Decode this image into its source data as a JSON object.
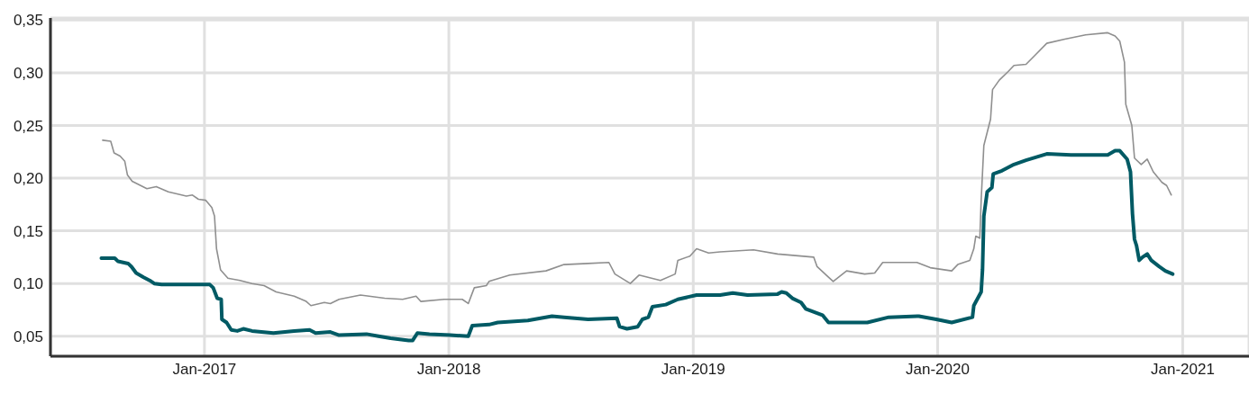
{
  "chart_data": {
    "type": "line",
    "xlim": [
      "2016-05-16",
      "2021-04-10"
    ],
    "ylim": [
      0.031,
      0.352
    ],
    "xticks": [
      {
        "value": "2017-01",
        "label": "Jan-2017"
      },
      {
        "value": "2018-01",
        "label": "Jan-2018"
      },
      {
        "value": "2019-01",
        "label": "Jan-2019"
      },
      {
        "value": "2020-01",
        "label": "Jan-2020"
      },
      {
        "value": "2021-01",
        "label": "Jan-2021"
      }
    ],
    "yticks": [
      {
        "value": 0.05,
        "label": "0,05"
      },
      {
        "value": 0.1,
        "label": "0,10"
      },
      {
        "value": 0.15,
        "label": "0,15"
      },
      {
        "value": 0.2,
        "label": "0,20"
      },
      {
        "value": 0.25,
        "label": "0,25"
      },
      {
        "value": 0.3,
        "label": "0,30"
      },
      {
        "value": 0.35,
        "label": "0,35"
      }
    ],
    "grid": true,
    "marker": "none",
    "series": [
      {
        "color": "#005a64",
        "x": [
          "2016-07-31",
          "2016-08-20",
          "2016-08-25",
          "2016-09-09",
          "2016-09-14",
          "2016-09-21",
          "2016-10-02",
          "2016-10-11",
          "2016-10-18",
          "2016-10-29",
          "2016-11-26",
          "2016-12-22",
          "2017-01-09",
          "2017-01-14",
          "2017-01-20",
          "2017-01-26",
          "2017-01-27",
          "2017-02-03",
          "2017-02-10",
          "2017-02-19",
          "2017-02-28",
          "2017-03-13",
          "2017-04-14",
          "2017-05-15",
          "2017-06-07",
          "2017-06-16",
          "2017-07-08",
          "2017-07-21",
          "2017-08-31",
          "2017-09-18",
          "2017-10-06",
          "2017-11-02",
          "2017-11-08",
          "2017-11-15",
          "2017-12-03",
          "2018-01-03",
          "2018-01-30",
          "2018-02-05",
          "2018-03-02",
          "2018-03-15",
          "2018-04-29",
          "2018-06-04",
          "2018-06-22",
          "2018-07-28",
          "2018-09-09",
          "2018-09-13",
          "2018-09-24",
          "2018-10-10",
          "2018-10-17",
          "2018-10-26",
          "2018-11-01",
          "2018-11-21",
          "2018-12-09",
          "2019-01-06",
          "2019-02-10",
          "2019-03-01",
          "2019-03-23",
          "2019-05-07",
          "2019-05-13",
          "2019-05-20",
          "2019-05-29",
          "2019-06-11",
          "2019-06-18",
          "2019-07-13",
          "2019-07-22",
          "2019-08-13",
          "2019-09-18",
          "2019-10-20",
          "2019-12-04",
          "2019-12-30",
          "2020-01-22",
          "2020-02-22",
          "2020-02-24",
          "2020-03-06",
          "2020-03-08",
          "2020-03-10",
          "2020-03-15",
          "2020-03-22",
          "2020-03-24",
          "2020-04-06",
          "2020-04-24",
          "2020-05-12",
          "2020-06-12",
          "2020-07-18",
          "2020-09-11",
          "2020-09-22",
          "2020-09-29",
          "2020-10-10",
          "2020-10-15",
          "2020-10-18",
          "2020-10-21",
          "2020-10-24",
          "2020-10-28",
          "2020-11-02",
          "2020-11-09",
          "2020-11-15",
          "2020-11-27",
          "2020-12-06",
          "2020-12-17"
        ],
        "values": [
          0.124,
          0.124,
          0.121,
          0.119,
          0.116,
          0.11,
          0.106,
          0.103,
          0.1,
          0.099,
          0.099,
          0.099,
          0.099,
          0.096,
          0.086,
          0.085,
          0.066,
          0.063,
          0.056,
          0.055,
          0.057,
          0.055,
          0.053,
          0.055,
          0.056,
          0.053,
          0.054,
          0.051,
          0.052,
          0.05,
          0.048,
          0.046,
          0.046,
          0.053,
          0.052,
          0.051,
          0.05,
          0.06,
          0.061,
          0.063,
          0.065,
          0.069,
          0.068,
          0.066,
          0.067,
          0.059,
          0.057,
          0.059,
          0.066,
          0.068,
          0.078,
          0.08,
          0.085,
          0.089,
          0.089,
          0.091,
          0.089,
          0.09,
          0.092,
          0.091,
          0.086,
          0.082,
          0.076,
          0.07,
          0.063,
          0.063,
          0.063,
          0.068,
          0.069,
          0.066,
          0.063,
          0.068,
          0.079,
          0.092,
          0.113,
          0.164,
          0.187,
          0.191,
          0.204,
          0.207,
          0.213,
          0.217,
          0.223,
          0.222,
          0.222,
          0.226,
          0.226,
          0.218,
          0.206,
          0.166,
          0.142,
          0.136,
          0.122,
          0.125,
          0.128,
          0.122,
          0.116,
          0.112,
          0.109
        ]
      },
      {
        "color": "#8f8f8f",
        "x": [
          "2016-08-02",
          "2016-08-14",
          "2016-08-19",
          "2016-08-28",
          "2016-09-04",
          "2016-09-08",
          "2016-09-15",
          "2016-10-07",
          "2016-10-21",
          "2016-11-08",
          "2016-12-05",
          "2016-12-14",
          "2016-12-23",
          "2017-01-03",
          "2017-01-12",
          "2017-01-16",
          "2017-01-19",
          "2017-01-25",
          "2017-02-05",
          "2017-02-23",
          "2017-03-13",
          "2017-03-31",
          "2017-04-18",
          "2017-05-15",
          "2017-06-02",
          "2017-06-09",
          "2017-06-29",
          "2017-07-08",
          "2017-07-21",
          "2017-08-22",
          "2017-09-27",
          "2017-10-24",
          "2017-11-13",
          "2017-11-20",
          "2017-12-25",
          "2018-01-21",
          "2018-01-30",
          "2018-02-08",
          "2018-02-26",
          "2018-03-02",
          "2018-04-02",
          "2018-05-26",
          "2018-06-22",
          "2018-07-28",
          "2018-08-28",
          "2018-09-06",
          "2018-09-29",
          "2018-10-12",
          "2018-11-13",
          "2018-12-05",
          "2018-12-09",
          "2018-12-27",
          "2019-01-06",
          "2019-01-24",
          "2019-02-10",
          "2019-04-01",
          "2019-05-07",
          "2019-06-30",
          "2019-07-05",
          "2019-07-22",
          "2019-07-29",
          "2019-08-18",
          "2019-09-14",
          "2019-09-29",
          "2019-10-11",
          "2019-12-01",
          "2019-12-21",
          "2020-01-22",
          "2020-01-31",
          "2020-02-18",
          "2020-02-24",
          "2020-02-27",
          "2020-03-04",
          "2020-03-06",
          "2020-03-10",
          "2020-03-20",
          "2020-03-23",
          "2020-04-02",
          "2020-04-15",
          "2020-04-24",
          "2020-05-12",
          "2020-05-26",
          "2020-06-12",
          "2020-07-09",
          "2020-08-09",
          "2020-09-11",
          "2020-09-22",
          "2020-09-29",
          "2020-10-06",
          "2020-10-08",
          "2020-10-17",
          "2020-10-21",
          "2020-10-31",
          "2020-11-09",
          "2020-11-18",
          "2020-12-01",
          "2020-12-08",
          "2020-12-15"
        ],
        "values": [
          0.236,
          0.235,
          0.224,
          0.221,
          0.216,
          0.203,
          0.197,
          0.19,
          0.192,
          0.187,
          0.183,
          0.184,
          0.18,
          0.179,
          0.172,
          0.164,
          0.133,
          0.113,
          0.105,
          0.103,
          0.1,
          0.098,
          0.092,
          0.088,
          0.083,
          0.079,
          0.082,
          0.081,
          0.085,
          0.089,
          0.086,
          0.085,
          0.088,
          0.083,
          0.085,
          0.085,
          0.081,
          0.096,
          0.098,
          0.102,
          0.108,
          0.112,
          0.118,
          0.119,
          0.12,
          0.109,
          0.1,
          0.108,
          0.103,
          0.109,
          0.122,
          0.126,
          0.133,
          0.129,
          0.13,
          0.132,
          0.128,
          0.125,
          0.116,
          0.106,
          0.102,
          0.112,
          0.109,
          0.11,
          0.12,
          0.12,
          0.115,
          0.112,
          0.118,
          0.122,
          0.133,
          0.145,
          0.143,
          0.179,
          0.231,
          0.256,
          0.284,
          0.293,
          0.301,
          0.307,
          0.308,
          0.317,
          0.328,
          0.332,
          0.336,
          0.338,
          0.335,
          0.33,
          0.31,
          0.27,
          0.25,
          0.219,
          0.213,
          0.218,
          0.206,
          0.196,
          0.193,
          0.184
        ]
      }
    ]
  }
}
